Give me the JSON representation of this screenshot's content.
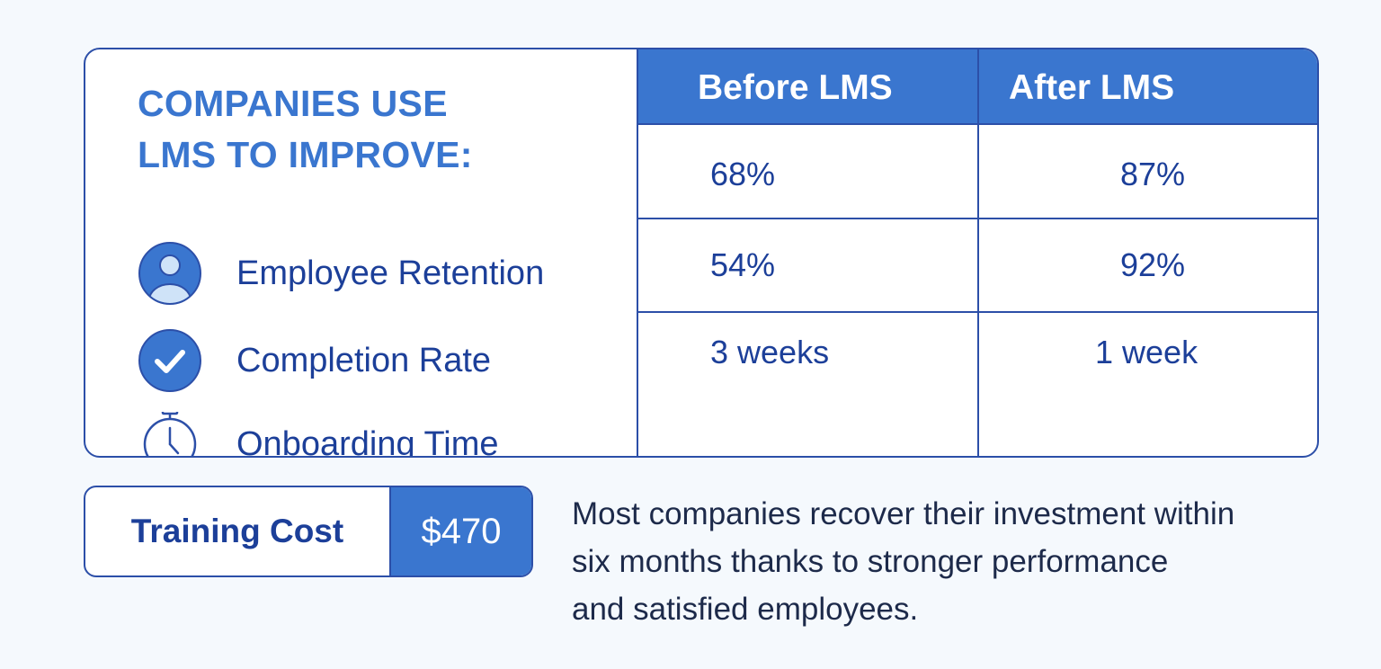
{
  "heading": {
    "line1": "COMPANIES USE",
    "line2": "LMS TO IMPROVE:"
  },
  "metrics": [
    {
      "label": "Employee Retention",
      "icon": "user-icon"
    },
    {
      "label": "Completion Rate",
      "icon": "checkmark-icon"
    },
    {
      "label": "Onboarding Time",
      "icon": "stopwatch-icon"
    }
  ],
  "table": {
    "headers": [
      "Before LMS",
      "After LMS"
    ],
    "rows": [
      [
        "68%",
        "87%"
      ],
      [
        "54%",
        "92%"
      ],
      [
        "3 weeks",
        "1 week"
      ]
    ]
  },
  "cost": {
    "label": "Training Cost",
    "value": "$470"
  },
  "note": {
    "line1": "Most companies recover their investment within",
    "line2": "six months thanks to stronger performance",
    "line3": "and satisfied employees."
  },
  "colors": {
    "accent": "#3a76cf",
    "border": "#2c4fa8",
    "text_dark_blue": "#1c3f99",
    "icon_light_fill": "#cfe3f8",
    "background": "#f5f9fd"
  }
}
